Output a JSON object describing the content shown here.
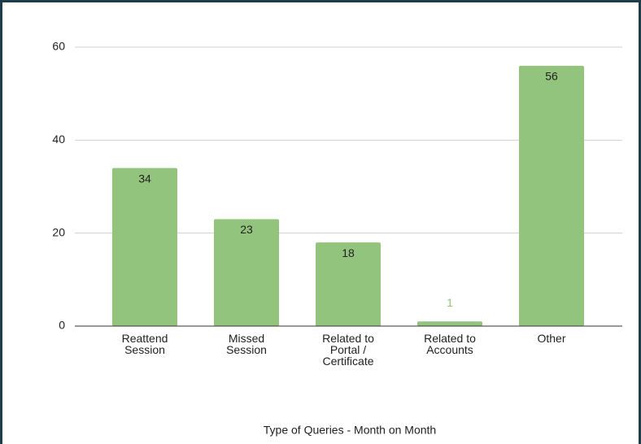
{
  "chart_data": {
    "type": "bar",
    "x_label": "Type of Queries - Month on Month",
    "categories": [
      "Reattend Session",
      "Missed Session",
      "Related to Portal / Certificate",
      "Related to Accounts",
      "Other"
    ],
    "values": [
      34,
      23,
      18,
      1,
      56
    ],
    "color": "#93c47d",
    "ylim": [
      0,
      60
    ],
    "yticks": [
      0,
      20,
      40,
      60
    ],
    "grid": true
  }
}
